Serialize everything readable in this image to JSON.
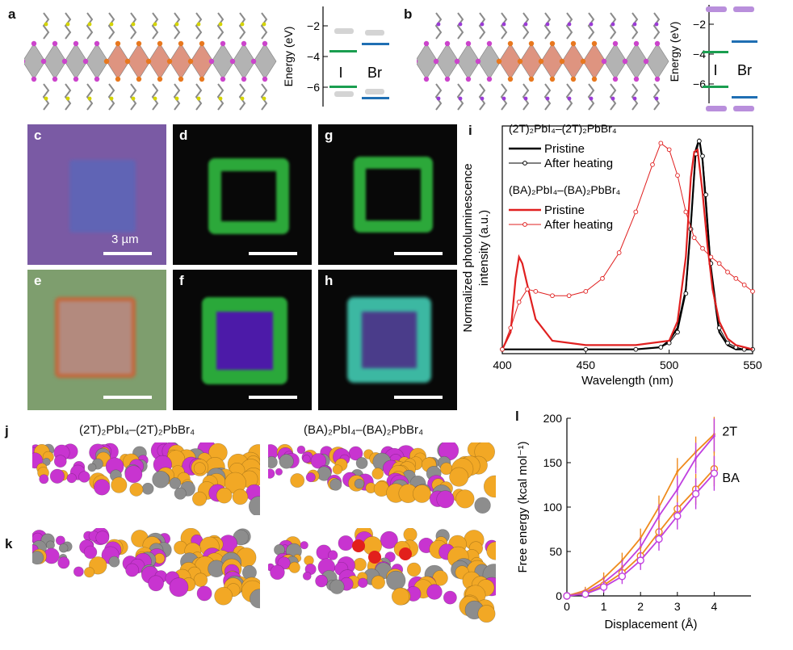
{
  "panels": {
    "a": "a",
    "b": "b",
    "c": "c",
    "d": "d",
    "e": "e",
    "f": "f",
    "g": "g",
    "h": "h",
    "i": "i",
    "j": "j",
    "k": "k",
    "l": "l"
  },
  "scale_bar_label": "3 µm",
  "energy": {
    "ylabel": "Energy (eV)",
    "ticks": [
      "−2",
      "−4",
      "−6"
    ],
    "col_I": "I",
    "col_Br": "Br",
    "colors": {
      "I": "#1a9e50",
      "Br": "#1f6fb3",
      "gray": "#cfcfcf",
      "purple": "#b98fdc"
    }
  },
  "j_k_titles": {
    "left": "(2T)₂PbI₄–(2T)₂PbBr₄",
    "right": "(BA)₂PbI₄–(BA)₂PbBr₄"
  },
  "chart_data": [
    {
      "type": "line",
      "panel": "i",
      "xlabel": "Wavelength (nm)",
      "ylabel_line1": "Normalized photoluminescence",
      "ylabel_line2": "intensity (a.u.)",
      "xlim": [
        400,
        550
      ],
      "xticks": [
        400,
        450,
        500,
        550
      ],
      "legend": {
        "group1": "(2T)₂PbI₄–(2T)₂PbBr₄",
        "group2": "(BA)₂PbI₄–(BA)₂PbBr₄",
        "pristine": "Pristine",
        "after": "After heating"
      },
      "series": [
        {
          "name": "2T Pristine",
          "color": "#000000",
          "x": [
            400,
            450,
            480,
            495,
            500,
            505,
            510,
            513,
            516,
            518,
            520,
            522,
            525,
            530,
            535,
            540,
            545,
            550
          ],
          "y": [
            0.02,
            0.02,
            0.02,
            0.03,
            0.06,
            0.12,
            0.3,
            0.6,
            0.95,
            1.0,
            0.9,
            0.7,
            0.38,
            0.1,
            0.04,
            0.02,
            0.02,
            0.02
          ]
        },
        {
          "name": "2T After heating",
          "color": "#000000",
          "x": [
            400,
            450,
            480,
            495,
            500,
            505,
            510,
            513,
            516,
            518,
            520,
            522,
            525,
            530,
            535,
            540,
            545,
            550
          ],
          "y": [
            0.02,
            0.02,
            0.02,
            0.03,
            0.05,
            0.1,
            0.28,
            0.58,
            0.93,
            0.99,
            0.92,
            0.74,
            0.42,
            0.12,
            0.05,
            0.03,
            0.02,
            0.02
          ]
        },
        {
          "name": "BA Pristine",
          "color": "#e02020",
          "x": [
            400,
            405,
            408,
            410,
            412,
            415,
            420,
            430,
            450,
            480,
            500,
            505,
            510,
            513,
            515,
            517,
            520,
            523,
            526,
            530,
            535,
            540,
            545,
            550
          ],
          "y": [
            0.02,
            0.1,
            0.35,
            0.45,
            0.42,
            0.32,
            0.16,
            0.06,
            0.04,
            0.04,
            0.06,
            0.15,
            0.45,
            0.82,
            0.94,
            0.95,
            0.75,
            0.5,
            0.3,
            0.15,
            0.07,
            0.04,
            0.03,
            0.02
          ]
        },
        {
          "name": "BA After heating",
          "color": "#e02020",
          "x": [
            400,
            405,
            410,
            415,
            420,
            430,
            440,
            450,
            460,
            470,
            480,
            490,
            495,
            500,
            505,
            510,
            515,
            520,
            525,
            530,
            535,
            540,
            545,
            550
          ],
          "y": [
            0.02,
            0.12,
            0.24,
            0.3,
            0.29,
            0.27,
            0.27,
            0.29,
            0.35,
            0.47,
            0.66,
            0.88,
            0.98,
            0.95,
            0.83,
            0.66,
            0.54,
            0.49,
            0.45,
            0.42,
            0.38,
            0.35,
            0.32,
            0.29
          ]
        }
      ]
    },
    {
      "type": "line",
      "panel": "l",
      "xlabel": "Displacement (Å)",
      "ylabel": "Free energy (kcal mol⁻¹)",
      "xlim": [
        0,
        5
      ],
      "ylim": [
        0,
        200
      ],
      "xticks": [
        0,
        1,
        2,
        3,
        4
      ],
      "yticks": [
        0,
        50,
        100,
        150,
        200
      ],
      "annotations": [
        "2T",
        "BA"
      ],
      "series": [
        {
          "name": "2T-1",
          "color": "#ef8a1c",
          "marker": "none",
          "x": [
            0,
            0.5,
            1,
            1.5,
            2,
            2.5,
            3,
            3.5,
            4
          ],
          "y": [
            0,
            6,
            20,
            40,
            65,
            100,
            140,
            162,
            182
          ]
        },
        {
          "name": "2T-2",
          "color": "#c040e0",
          "marker": "none",
          "x": [
            0,
            0.5,
            1,
            1.5,
            2,
            2.5,
            3,
            3.5,
            4
          ],
          "y": [
            0,
            4,
            15,
            32,
            55,
            90,
            120,
            155,
            180
          ]
        },
        {
          "name": "BA-1",
          "color": "#ef8a1c",
          "marker": "open",
          "x": [
            0,
            0.5,
            1,
            1.5,
            2,
            2.5,
            3,
            3.5,
            4
          ],
          "y": [
            0,
            3,
            12,
            26,
            45,
            72,
            98,
            120,
            143
          ]
        },
        {
          "name": "BA-2",
          "color": "#c040e0",
          "marker": "open",
          "x": [
            0,
            0.5,
            1,
            1.5,
            2,
            2.5,
            3,
            3.5,
            4
          ],
          "y": [
            0,
            2,
            10,
            22,
            40,
            64,
            90,
            115,
            138
          ]
        }
      ]
    }
  ]
}
